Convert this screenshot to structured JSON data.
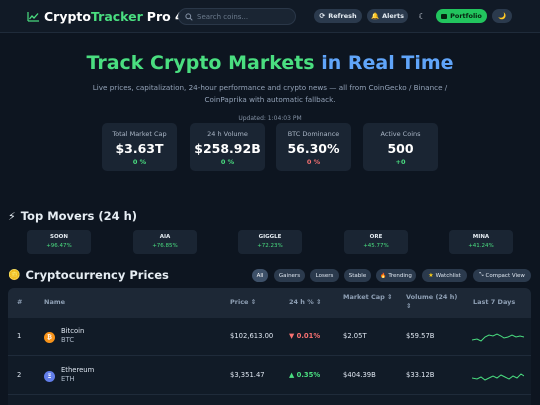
{
  "header": {
    "brand_part1": "Crypto",
    "brand_part2": "Tracker",
    "brand_part3": "Pro 4",
    "search_placeholder": "Search coins...",
    "refresh_label": "Refresh",
    "alerts_label": "Alerts",
    "theme_icon": "☾",
    "portfolio_label": "Portfolio",
    "moon_icon": "🌙"
  },
  "hero": {
    "title_part1": "Track Crypto Markets",
    "title_part2": "in Real Time",
    "subtitle": "Live prices, capitalization, 24-hour performance and crypto news — all from CoinGecko / Binance / CoinPaprika with automatic fallback.",
    "updated": "Updated: 1:04:03 PM"
  },
  "stats": [
    {
      "label": "Total Market Cap",
      "value": "$3.63T",
      "change": "0 %",
      "color": "#4ade80"
    },
    {
      "label": "24 h Volume",
      "value": "$258.92B",
      "change": "0 %",
      "color": "#4ade80"
    },
    {
      "label": "BTC Dominance",
      "value": "56.30%",
      "change": "0 %",
      "color": "#f87171"
    },
    {
      "label": "Active Coins",
      "value": "500",
      "change": "+0",
      "color": "#4ade80"
    }
  ],
  "movers": {
    "title": "Top Movers (24 h)",
    "items": [
      {
        "symbol": "SOON",
        "change": "+96.47%"
      },
      {
        "symbol": "AIA",
        "change": "+76.85%"
      },
      {
        "symbol": "GIGGLE",
        "change": "+72.23%"
      },
      {
        "symbol": "ORE",
        "change": "+45.77%"
      },
      {
        "symbol": "MINA",
        "change": "+41.24%"
      }
    ]
  },
  "prices": {
    "title": "Cryptocurrency Prices",
    "filters": [
      "All",
      "Gainers",
      "Losers",
      "Stable",
      "Trending",
      "Watchlist",
      "Compact View"
    ],
    "columns": [
      "#",
      "Name",
      "Price ⇕",
      "24 h % ⇕",
      "Market Cap ⇕",
      "Volume (24 h) ⇕",
      "Last 7 Days"
    ],
    "rows": [
      {
        "rank": "1",
        "name": "Bitcoin",
        "symbol": "BTC",
        "icon": "₿",
        "price": "$102,613.00",
        "change": "▼ 0.01%",
        "mcap": "$2.05T",
        "volume": "$59.57B"
      },
      {
        "rank": "2",
        "name": "Ethereum",
        "symbol": "ETH",
        "icon": "Ξ",
        "price": "$3,351.47",
        "change": "▲ 0.35%",
        "mcap": "$404.39B",
        "volume": "$33.12B"
      }
    ]
  },
  "colors": {
    "accent_green": "#4ade80",
    "accent_blue": "#60a5fa",
    "negative": "#f87171",
    "bitcoin_orange": "#f7931a",
    "ethereum_slate": "#627eea"
  }
}
